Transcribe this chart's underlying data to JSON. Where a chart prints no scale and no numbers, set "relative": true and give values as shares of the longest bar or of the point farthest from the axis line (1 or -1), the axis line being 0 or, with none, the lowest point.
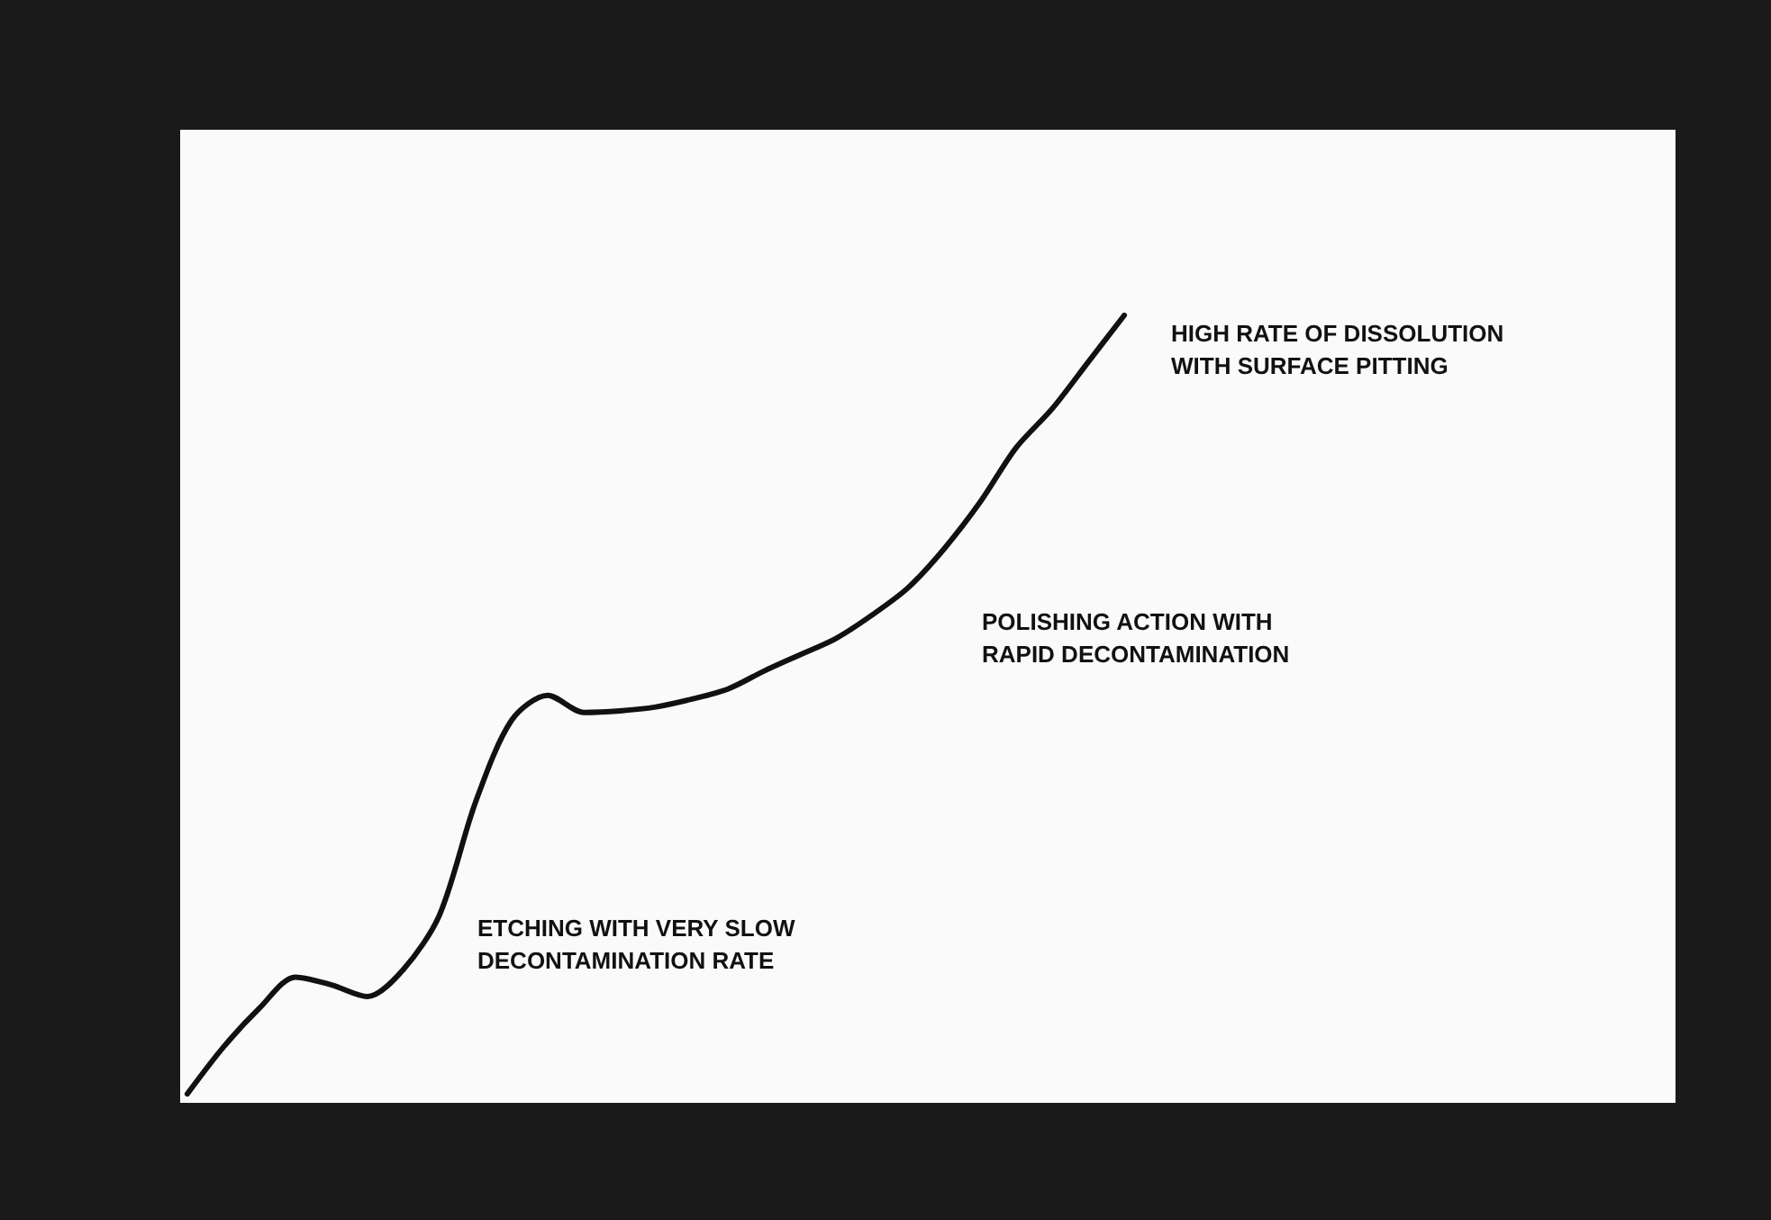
{
  "chart_data": {
    "type": "line",
    "relative": true,
    "categories": [
      null,
      null,
      null,
      null,
      null,
      null,
      null,
      null,
      null,
      null,
      null,
      null,
      null,
      null,
      null,
      null,
      null,
      null,
      null,
      null,
      null,
      null,
      null,
      null,
      null,
      null,
      null
    ],
    "series": [
      {
        "color": "#111111",
        "values": [
          0,
          0.06,
          0.11,
          0.15,
          0.14,
          0.125,
          0.16,
          0.23,
          0.375,
          0.48,
          0.512,
          0.49,
          0.492,
          0.497,
          0.507,
          0.52,
          0.543,
          0.564,
          0.585,
          0.615,
          0.65,
          0.7,
          0.76,
          0.83,
          0.88,
          0.94,
          1
        ]
      }
    ],
    "annotations": [
      "HIGH RATE OF DISSOLUTION\nWITH SURFACE PITTING",
      "POLISHING ACTION WITH\nRAPID DECONTAMINATION",
      "ETCHING WITH VERY SLOW\nDECONTAMINATION RATE"
    ],
    "marker": "none",
    "grid": false
  }
}
